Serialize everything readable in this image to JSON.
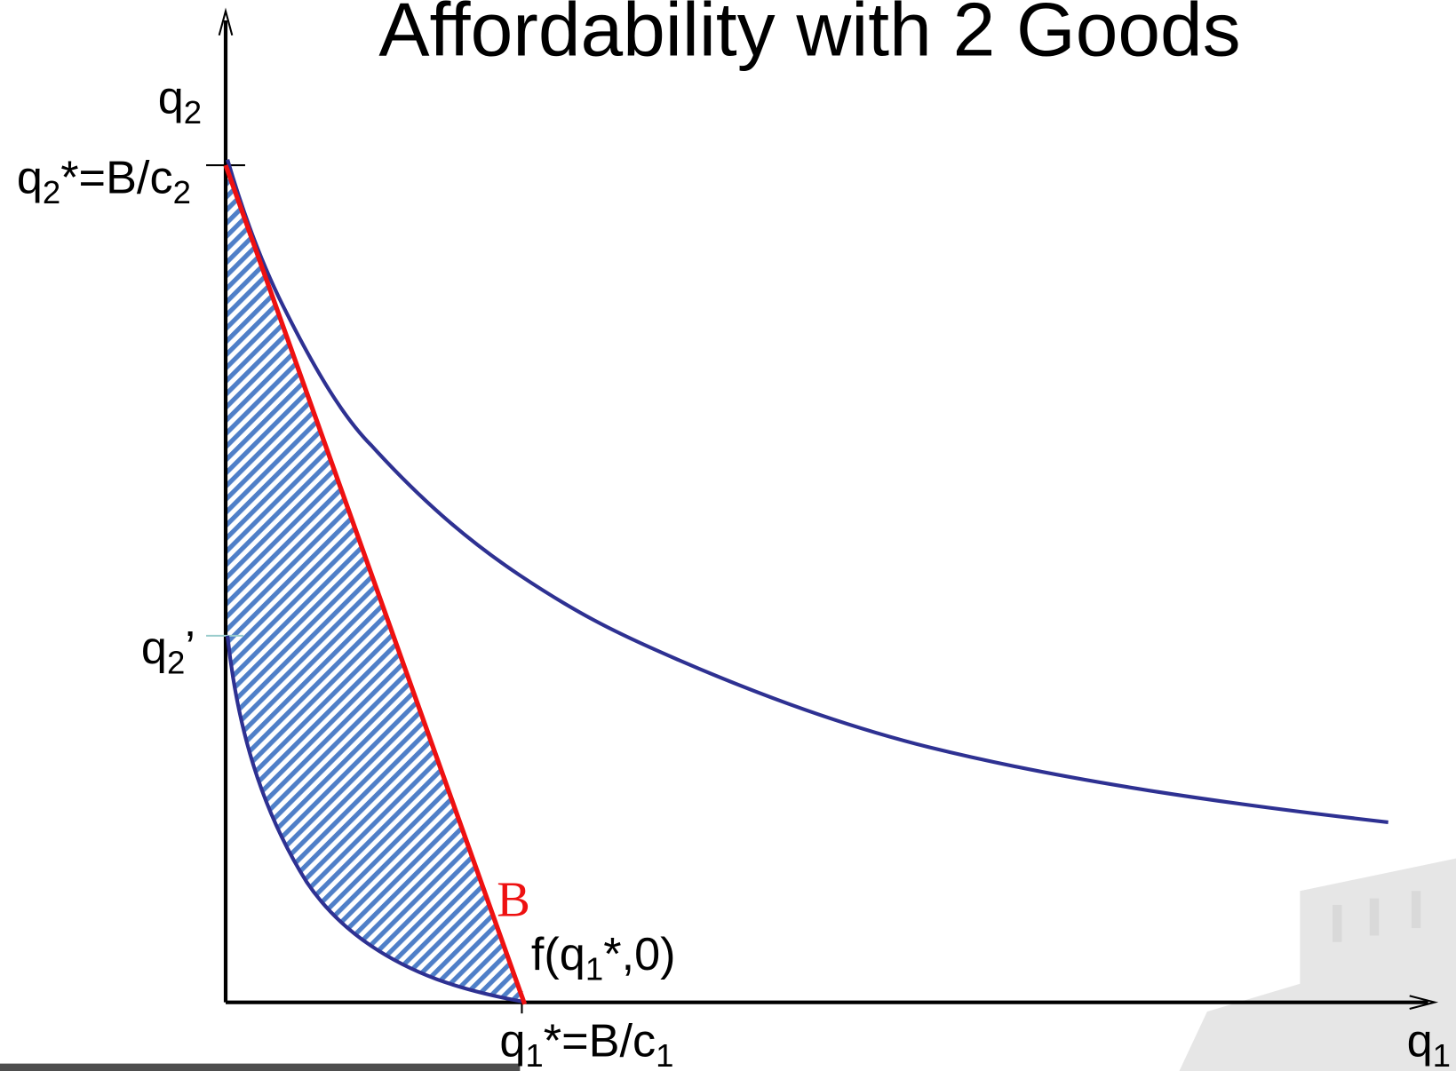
{
  "title": "Affordability with 2 Goods",
  "labels": {
    "y_axis": [
      {
        "t": "q"
      },
      {
        "sub": "2"
      }
    ],
    "q2_star": [
      {
        "t": "q"
      },
      {
        "sub": "2"
      },
      {
        "t": "*=B/c"
      },
      {
        "sub": "2"
      }
    ],
    "q2_prime": [
      {
        "t": "q"
      },
      {
        "sub": "2"
      },
      {
        "t": "’"
      }
    ],
    "budget": [
      {
        "t": "B"
      }
    ],
    "f_point": [
      {
        "t": "f(q"
      },
      {
        "sub": "1"
      },
      {
        "t": "*,0)"
      }
    ],
    "q1_star": [
      {
        "t": "q"
      },
      {
        "sub": "1"
      },
      {
        "t": "*=B/c"
      },
      {
        "sub": "1"
      }
    ],
    "x_axis": [
      {
        "t": "q"
      },
      {
        "sub": "1"
      }
    ]
  }
}
